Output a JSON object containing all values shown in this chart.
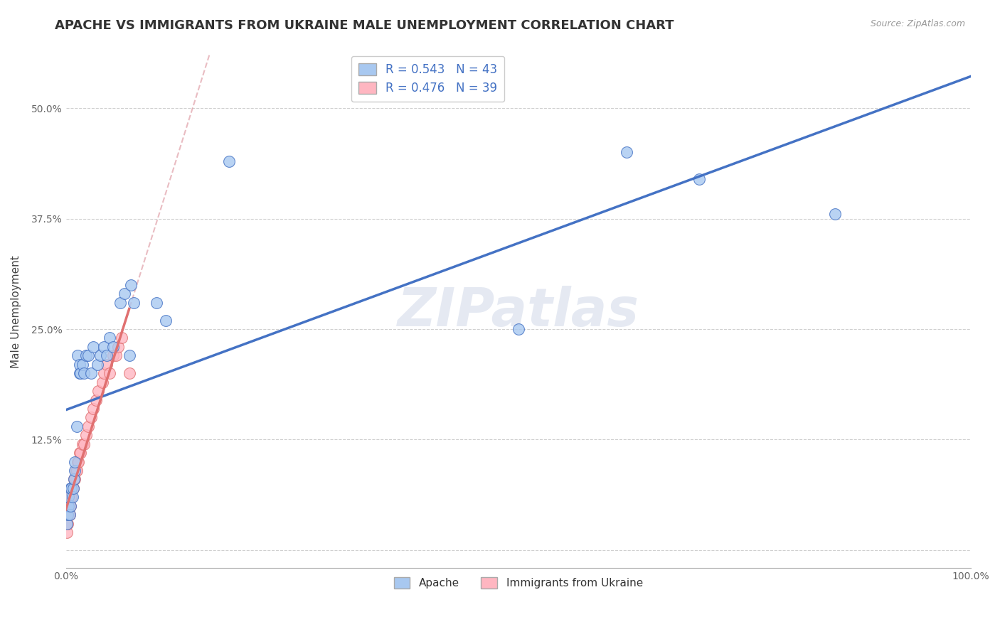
{
  "title": "APACHE VS IMMIGRANTS FROM UKRAINE MALE UNEMPLOYMENT CORRELATION CHART",
  "source": "Source: ZipAtlas.com",
  "ylabel": "Male Unemployment",
  "xlabel": "",
  "background_color": "#ffffff",
  "plot_bg_color": "#ffffff",
  "apache": {
    "color": "#a8c8f0",
    "line_color": "#4472c4",
    "R": 0.543,
    "N": 43,
    "x": [
      0.001,
      0.002,
      0.002,
      0.003,
      0.003,
      0.004,
      0.005,
      0.005,
      0.006,
      0.007,
      0.008,
      0.009,
      0.01,
      0.01,
      0.012,
      0.013,
      0.015,
      0.015,
      0.016,
      0.018,
      0.02,
      0.022,
      0.025,
      0.028,
      0.03,
      0.035,
      0.038,
      0.042,
      0.045,
      0.048,
      0.052,
      0.06,
      0.065,
      0.07,
      0.072,
      0.075,
      0.1,
      0.11,
      0.18,
      0.5,
      0.62,
      0.7,
      0.85
    ],
    "y": [
      0.03,
      0.04,
      0.05,
      0.05,
      0.06,
      0.04,
      0.05,
      0.07,
      0.07,
      0.06,
      0.07,
      0.08,
      0.09,
      0.1,
      0.14,
      0.22,
      0.2,
      0.21,
      0.2,
      0.21,
      0.2,
      0.22,
      0.22,
      0.2,
      0.23,
      0.21,
      0.22,
      0.23,
      0.22,
      0.24,
      0.23,
      0.28,
      0.29,
      0.22,
      0.3,
      0.28,
      0.28,
      0.26,
      0.44,
      0.25,
      0.45,
      0.42,
      0.38
    ]
  },
  "ukraine": {
    "color": "#ffb6c1",
    "line_color": "#e07070",
    "R": 0.476,
    "N": 39,
    "x": [
      0.001,
      0.001,
      0.002,
      0.002,
      0.003,
      0.003,
      0.004,
      0.004,
      0.005,
      0.005,
      0.006,
      0.006,
      0.007,
      0.008,
      0.009,
      0.01,
      0.011,
      0.012,
      0.013,
      0.014,
      0.015,
      0.016,
      0.018,
      0.02,
      0.022,
      0.025,
      0.028,
      0.03,
      0.033,
      0.036,
      0.04,
      0.042,
      0.045,
      0.048,
      0.052,
      0.055,
      0.058,
      0.062,
      0.07
    ],
    "y": [
      0.02,
      0.03,
      0.03,
      0.04,
      0.04,
      0.05,
      0.04,
      0.05,
      0.05,
      0.06,
      0.06,
      0.07,
      0.07,
      0.07,
      0.08,
      0.08,
      0.09,
      0.09,
      0.1,
      0.1,
      0.11,
      0.11,
      0.12,
      0.12,
      0.13,
      0.14,
      0.15,
      0.16,
      0.17,
      0.18,
      0.19,
      0.2,
      0.21,
      0.2,
      0.22,
      0.22,
      0.23,
      0.24,
      0.2
    ]
  },
  "xlim": [
    0.0,
    1.0
  ],
  "ylim": [
    -0.02,
    0.56
  ],
  "xticks": [
    0.0,
    0.125,
    0.25,
    0.375,
    0.5,
    0.625,
    0.75,
    0.875,
    1.0
  ],
  "xticklabels": [
    "0.0%",
    "",
    "",
    "",
    "",
    "",
    "",
    "",
    "100.0%"
  ],
  "yticks": [
    0.0,
    0.125,
    0.25,
    0.375,
    0.5
  ],
  "yticklabels": [
    "",
    "12.5%",
    "25.0%",
    "37.5%",
    "50.0%"
  ],
  "grid_color": "#d0d0d0",
  "watermark": "ZIPatlas",
  "watermark_color": "#d0d8e8",
  "title_fontsize": 13,
  "axis_label_fontsize": 11,
  "tick_fontsize": 10,
  "legend_fontsize": 12
}
